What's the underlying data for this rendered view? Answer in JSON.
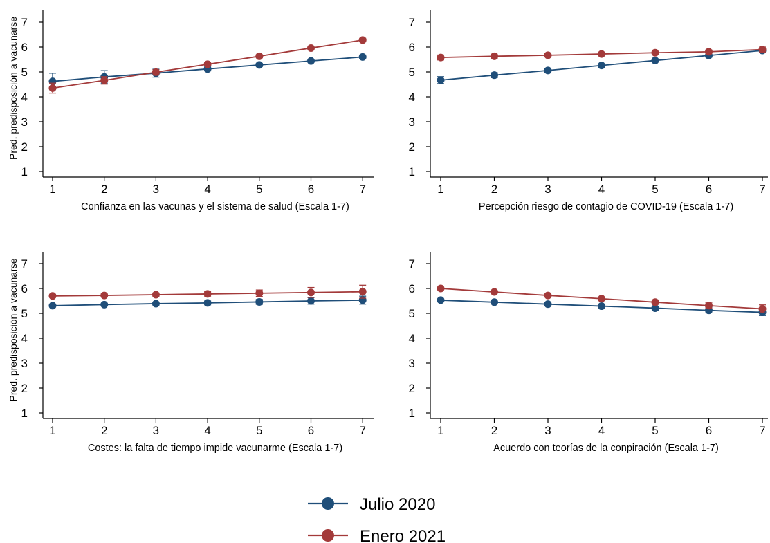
{
  "chart_data": [
    {
      "type": "line",
      "xlabel": "Confianza en las vacunas y el sistema de salud (Escala 1-7)",
      "ylabel": "Pred. predisposición a vacunarse",
      "x": [
        1,
        2,
        3,
        4,
        5,
        6,
        7
      ],
      "xlim": [
        1,
        7
      ],
      "ylim": [
        1,
        7
      ],
      "series": [
        {
          "name": "Julio 2020",
          "values": [
            4.62,
            4.8,
            4.95,
            5.12,
            5.28,
            5.44,
            5.6
          ],
          "ci": [
            0.33,
            0.25,
            0.16,
            0.08,
            0.06,
            0.06,
            0.08
          ]
        },
        {
          "name": "Enero 2021",
          "values": [
            4.35,
            4.66,
            4.99,
            5.31,
            5.63,
            5.96,
            6.28
          ],
          "ci": [
            0.2,
            0.15,
            0.1,
            0.07,
            0.06,
            0.06,
            0.07
          ]
        }
      ]
    },
    {
      "type": "line",
      "xlabel": "Percepción riesgo de contagio de COVID-19 (Escala 1-7)",
      "ylabel": "",
      "x": [
        1,
        2,
        3,
        4,
        5,
        6,
        7
      ],
      "xlim": [
        1,
        7
      ],
      "ylim": [
        1,
        7
      ],
      "series": [
        {
          "name": "Julio 2020",
          "values": [
            4.67,
            4.87,
            5.06,
            5.26,
            5.46,
            5.66,
            5.86
          ],
          "ci": [
            0.14,
            0.1,
            0.07,
            0.06,
            0.06,
            0.07,
            0.09
          ]
        },
        {
          "name": "Enero 2021",
          "values": [
            5.58,
            5.63,
            5.67,
            5.72,
            5.77,
            5.81,
            5.9
          ],
          "ci": [
            0.1,
            0.08,
            0.06,
            0.05,
            0.05,
            0.07,
            0.1
          ]
        }
      ]
    },
    {
      "type": "line",
      "xlabel": "Costes: la falta de tiempo impide vacunarme (Escala 1-7)",
      "ylabel": "Pred. predisposición a vacunarse",
      "x": [
        1,
        2,
        3,
        4,
        5,
        6,
        7
      ],
      "xlim": [
        1,
        7
      ],
      "ylim": [
        1,
        7
      ],
      "series": [
        {
          "name": "Julio 2020",
          "values": [
            5.31,
            5.35,
            5.39,
            5.42,
            5.46,
            5.5,
            5.53
          ],
          "ci": [
            0.05,
            0.05,
            0.06,
            0.08,
            0.1,
            0.13,
            0.16
          ]
        },
        {
          "name": "Enero 2021",
          "values": [
            5.7,
            5.72,
            5.75,
            5.78,
            5.81,
            5.84,
            5.87
          ],
          "ci": [
            0.06,
            0.06,
            0.07,
            0.09,
            0.13,
            0.2,
            0.26
          ]
        }
      ]
    },
    {
      "type": "line",
      "xlabel": "Acuerdo con teorías de la conpiración (Escala 1-7)",
      "ylabel": "",
      "x": [
        1,
        2,
        3,
        4,
        5,
        6,
        7
      ],
      "xlim": [
        1,
        7
      ],
      "ylim": [
        1,
        7
      ],
      "series": [
        {
          "name": "Julio 2020",
          "values": [
            5.53,
            5.45,
            5.37,
            5.29,
            5.21,
            5.12,
            5.04
          ],
          "ci": [
            0.05,
            0.04,
            0.05,
            0.06,
            0.08,
            0.1,
            0.13
          ]
        },
        {
          "name": "Enero 2021",
          "values": [
            6.0,
            5.86,
            5.72,
            5.59,
            5.45,
            5.31,
            5.18
          ],
          "ci": [
            0.05,
            0.05,
            0.06,
            0.07,
            0.09,
            0.11,
            0.16
          ]
        }
      ]
    }
  ],
  "colors": {
    "julio": "#1f4e79",
    "enero": "#a33a3a",
    "axis": "#000000"
  },
  "legend": {
    "position": "bottom-center",
    "items": [
      {
        "label": "Julio 2020",
        "color": "#1f4e79"
      },
      {
        "label": "Enero 2021",
        "color": "#a33a3a"
      }
    ]
  }
}
